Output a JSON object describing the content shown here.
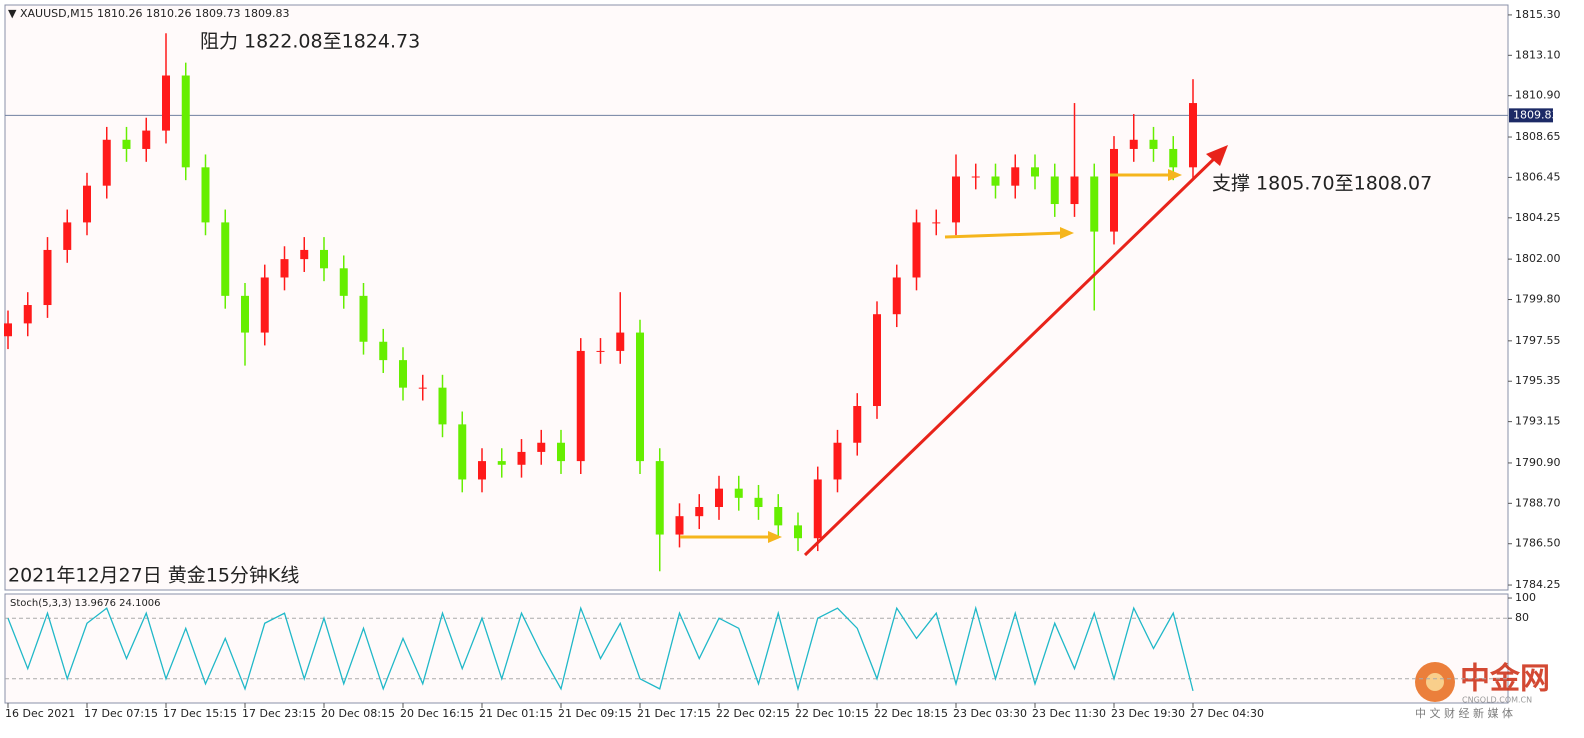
{
  "chart_data": {
    "type": "candlestick",
    "title": "▼ XAUUSD,M15  1810.26 1810.26 1809.73 1809.83",
    "annotations": [
      "阻力 1822.08至1824.73",
      "支撑 1805.70至1808.07",
      "2021年12月27日 黄金15分钟K线"
    ],
    "categories": [
      "16 Dec 2021",
      null,
      null,
      null,
      "17 Dec 07:15",
      null,
      null,
      null,
      "17 Dec 15:15",
      null,
      null,
      null,
      "17 Dec 23:15",
      null,
      null,
      null,
      "20 Dec 08:15",
      null,
      null,
      null,
      "20 Dec 16:15",
      null,
      null,
      null,
      "21 Dec 01:15",
      null,
      null,
      null,
      "21 Dec 09:15",
      null,
      null,
      null,
      "21 Dec 17:15",
      null,
      null,
      null,
      "22 Dec 02:15",
      null,
      null,
      null,
      "22 Dec 10:15",
      null,
      null,
      null,
      "22 Dec 18:15",
      null,
      null,
      null,
      "23 Dec 03:30",
      null,
      null,
      null,
      "23 Dec 11:30",
      null,
      null,
      null,
      "23 Dec 19:30",
      null,
      null,
      null,
      "27 Dec 04:30"
    ],
    "open": [
      1797.8,
      1798.5,
      1799.5,
      1802.5,
      1804,
      1806,
      1808.5,
      1808,
      1809,
      1812,
      1807,
      1804,
      1800,
      1798,
      1801,
      1802,
      1802.5,
      1801.5,
      1800,
      1797.5,
      1796.5,
      1795,
      1795,
      1793,
      1790,
      1791,
      1790.8,
      1791.5,
      1792,
      1791,
      1797,
      1797,
      1798,
      1791,
      1787,
      1788,
      1788.5,
      1789.5,
      1789,
      1788.5,
      1787.5,
      1786.8,
      1790,
      1792,
      1794,
      1799,
      1801,
      1804,
      1804,
      1806.5,
      1806.5,
      1806,
      1807,
      1806.5,
      1805,
      1806.5,
      1803.5,
      1808,
      1808.5,
      1808,
      1807
    ],
    "high": [
      1799.2,
      1800.2,
      1803.2,
      1804.7,
      1806.7,
      1809.2,
      1809.2,
      1809.7,
      1814.3,
      1812.7,
      1807.7,
      1804.7,
      1800.7,
      1801.7,
      1802.7,
      1803.2,
      1803.2,
      1802.2,
      1800.7,
      1798.2,
      1797.2,
      1795.7,
      1795.7,
      1793.7,
      1791.7,
      1791.7,
      1792.2,
      1792.7,
      1792.7,
      1797.7,
      1797.7,
      1800.2,
      1798.7,
      1791.7,
      1788.7,
      1789.2,
      1790.2,
      1790.2,
      1789.7,
      1789.2,
      1788.2,
      1790.7,
      1792.7,
      1794.7,
      1799.7,
      1801.7,
      1804.7,
      1804.7,
      1807.7,
      1807.2,
      1807.2,
      1807.7,
      1807.7,
      1807.2,
      1810.5,
      1807.2,
      1808.7,
      1809.9,
      1809.2,
      1808.7,
      1811.8
    ],
    "low": [
      1797.1,
      1797.8,
      1798.8,
      1801.8,
      1803.3,
      1805.3,
      1807.3,
      1807.3,
      1808.3,
      1806.3,
      1803.3,
      1799.3,
      1796.2,
      1797.3,
      1800.3,
      1801.3,
      1800.8,
      1799.3,
      1796.8,
      1795.8,
      1794.3,
      1794.3,
      1792.3,
      1789.3,
      1789.3,
      1790.1,
      1790.1,
      1790.8,
      1790.3,
      1790.3,
      1796.3,
      1796.3,
      1790.3,
      1785.0,
      1786.3,
      1787.3,
      1787.8,
      1788.3,
      1787.8,
      1786.8,
      1786.1,
      1786.1,
      1789.3,
      1791.3,
      1793.3,
      1798.3,
      1800.3,
      1803.3,
      1803.3,
      1805.8,
      1805.3,
      1805.3,
      1805.8,
      1804.3,
      1804.3,
      1799.2,
      1802.8,
      1807.3,
      1807.3,
      1806.3,
      1806.3
    ],
    "close": [
      1798.5,
      1799.5,
      1802.5,
      1804,
      1806,
      1808.5,
      1808,
      1809,
      1812,
      1807,
      1804,
      1800,
      1798,
      1801,
      1802,
      1802.5,
      1801.5,
      1800,
      1797.5,
      1796.5,
      1795,
      1795,
      1793,
      1790,
      1791,
      1790.8,
      1791.5,
      1792,
      1791,
      1797,
      1797,
      1798,
      1791,
      1787,
      1788,
      1788.5,
      1789.5,
      1789,
      1788.5,
      1787.5,
      1786.8,
      1790,
      1792,
      1794,
      1799,
      1801,
      1804,
      1804,
      1806.5,
      1806.5,
      1806,
      1807,
      1806.5,
      1805,
      1806.5,
      1803.5,
      1808,
      1808.5,
      1808,
      1807,
      1810.5
    ],
    "up_color": "#ff1a1a",
    "down_color": "#66ee00",
    "last_price": 1809.83,
    "ylim": [
      1783.98,
      1815.84
    ],
    "yticks": [
      {
        "value": 1815.3,
        "label": "1815.30"
      },
      {
        "value": 1813.1,
        "label": "1813.10"
      },
      {
        "value": 1810.9,
        "label": "1810.90"
      },
      1808.65,
      1806.45,
      1804.25,
      {
        "value": 1802,
        "label": "1802.00"
      },
      {
        "value": 1799.8,
        "label": "1799.80"
      },
      1797.55,
      1795.35,
      1793.15,
      {
        "value": 1790.9,
        "label": "1790.90"
      },
      {
        "value": 1788.7,
        "label": "1788.70"
      },
      {
        "value": 1786.5,
        "label": "1786.50"
      },
      1784.25
    ],
    "oscillator": {
      "title": "Stoch(5,3,3) 13.9676 24.1006",
      "color": "#20b8c8",
      "values": [
        80,
        30,
        85,
        20,
        75,
        90,
        40,
        85,
        20,
        70,
        15,
        60,
        10,
        75,
        85,
        20,
        80,
        15,
        70,
        10,
        60,
        15,
        85,
        30,
        80,
        20,
        85,
        45,
        10,
        90,
        40,
        75,
        20,
        10,
        85,
        40,
        80,
        70,
        15,
        85,
        10,
        80,
        90,
        70,
        20,
        90,
        60,
        85,
        15,
        90,
        20,
        85,
        15,
        75,
        30,
        85,
        20,
        90,
        50,
        85,
        8
      ],
      "ylim": [
        -3,
        103
      ],
      "yticks": [
        80,
        100
      ],
      "levels": [
        20,
        80
      ]
    },
    "watermark": [
      "中金网",
      "CNGOLD.COM.CN",
      "中 文 财 经 新 媒 体"
    ]
  }
}
